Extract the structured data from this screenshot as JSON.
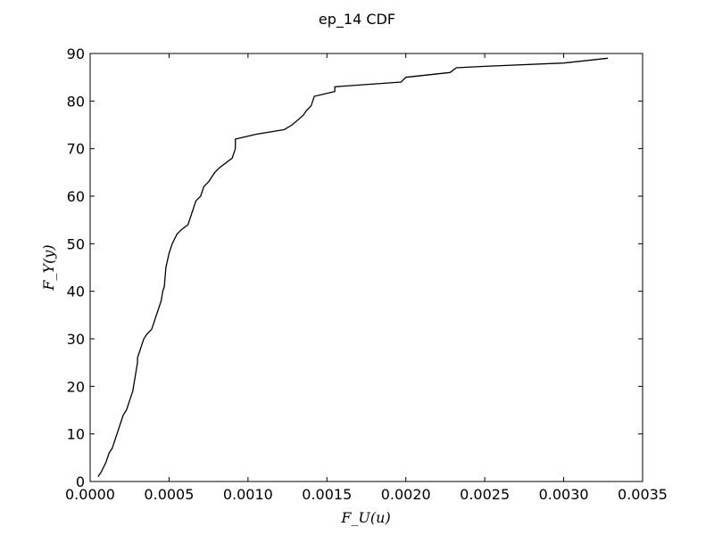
{
  "chart_data": {
    "type": "line",
    "title": "ep_14 CDF",
    "xlabel": "F_U(u)",
    "ylabel": "F_Y(y)",
    "xlim": [
      0,
      0.0035
    ],
    "ylim": [
      0,
      90
    ],
    "xticks": [
      0,
      0.0005,
      0.001,
      0.0015,
      0.002,
      0.0025,
      0.003,
      0.0035
    ],
    "xtick_labels": [
      "0.0000",
      "0.0005",
      "0.0010",
      "0.0015",
      "0.0020",
      "0.0025",
      "0.0030",
      "0.0035"
    ],
    "yticks": [
      0,
      10,
      20,
      30,
      40,
      50,
      60,
      70,
      80,
      90
    ],
    "ytick_labels": [
      "0",
      "10",
      "20",
      "30",
      "40",
      "50",
      "60",
      "70",
      "80",
      "90"
    ],
    "grid": false,
    "line_color": "#000000",
    "series": [
      {
        "x": [
          5e-05,
          7e-05,
          0.0001,
          0.00012,
          0.00014,
          0.00016,
          0.00017,
          0.00019,
          0.00021,
          0.00023,
          0.00025,
          0.00027,
          0.00028,
          0.00029,
          0.0003,
          0.0003,
          0.00031,
          0.00033,
          0.00034,
          0.00036,
          0.00039,
          0.00042,
          0.00043,
          0.00045,
          0.00046,
          0.00047,
          0.00048,
          0.0005,
          0.00052,
          0.00055,
          0.00058,
          0.00062,
          0.00065,
          0.00067,
          0.0007,
          0.00072,
          0.00075,
          0.00079,
          0.00082,
          0.00086,
          0.0009,
          0.00092,
          0.00092,
          0.00105,
          0.00123,
          0.00128,
          0.00135,
          0.00137,
          0.0014,
          0.00142,
          0.00155,
          0.00155,
          0.00197,
          0.002,
          0.00228,
          0.00232,
          0.0025,
          0.003,
          0.00328
        ],
        "y": [
          1,
          2,
          4,
          6,
          7,
          9,
          10,
          12,
          14,
          15,
          17,
          19,
          21,
          23,
          25,
          26,
          27,
          29,
          30,
          31,
          32,
          35,
          36,
          38,
          40,
          41,
          45,
          48,
          50,
          52,
          53,
          54,
          57,
          59,
          60,
          62,
          63,
          65,
          66,
          67,
          68,
          70,
          72,
          73,
          74,
          75,
          77,
          78,
          79,
          81,
          82,
          83,
          84,
          85,
          86,
          87,
          87.3,
          88,
          89
        ]
      }
    ]
  }
}
